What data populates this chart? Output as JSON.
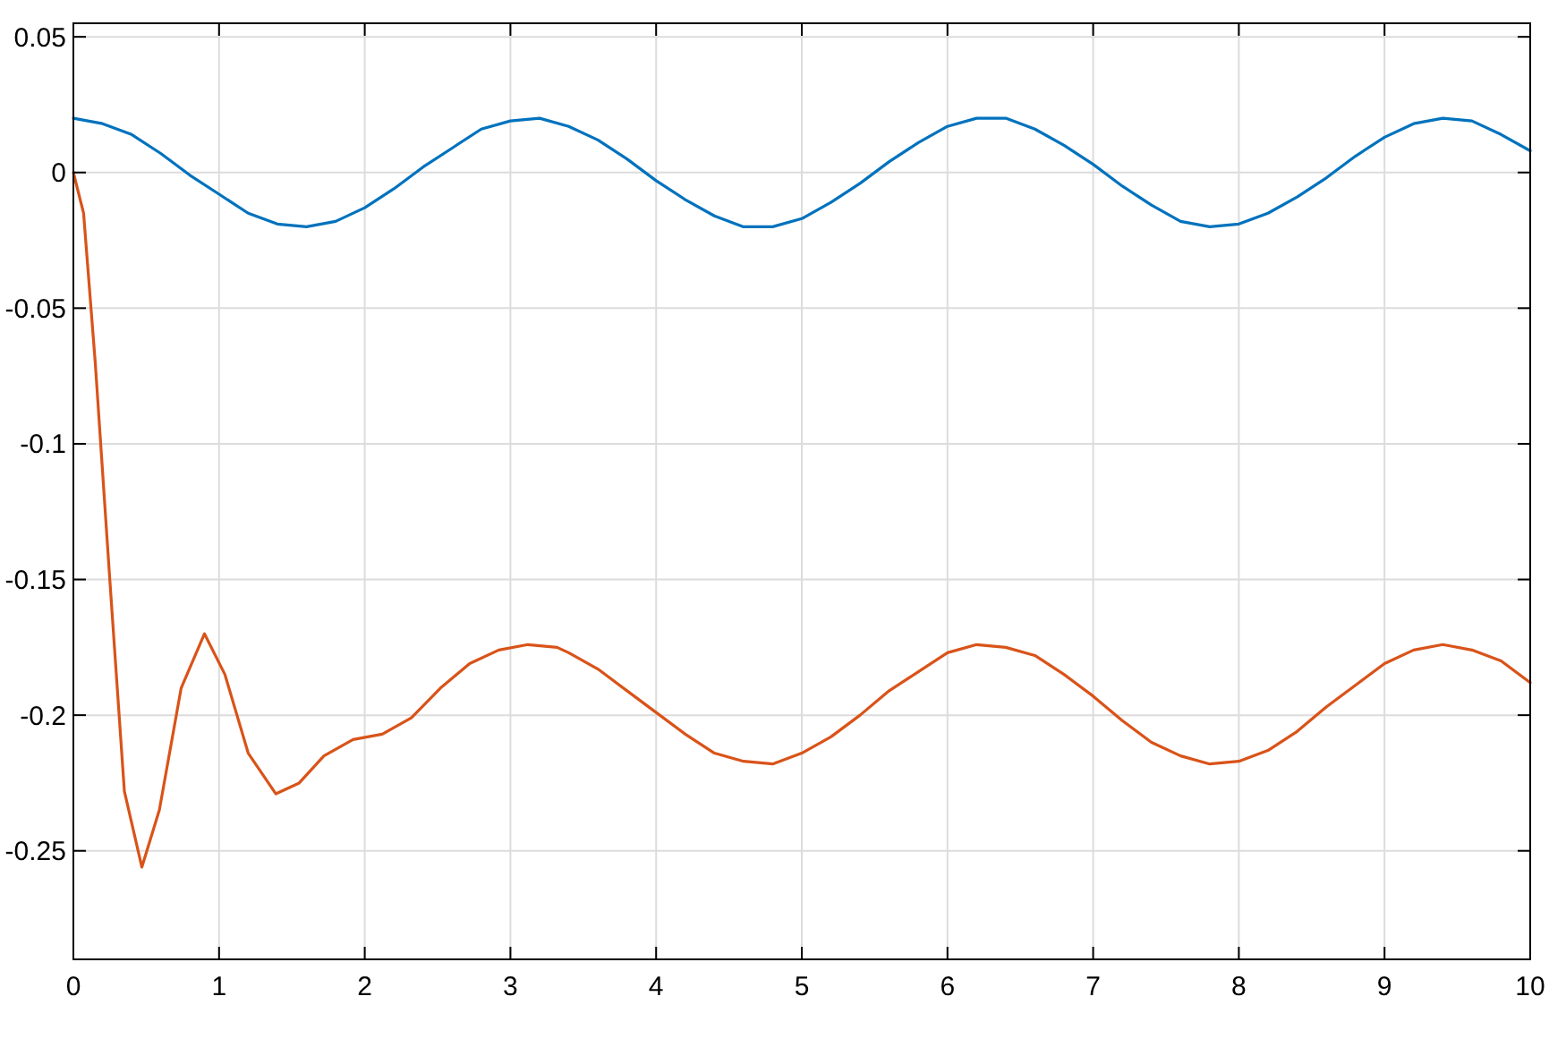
{
  "chart_data": {
    "type": "line",
    "xlim": [
      0,
      10
    ],
    "ylim": [
      -0.29,
      0.055
    ],
    "xticks": [
      0,
      1,
      2,
      3,
      4,
      5,
      6,
      7,
      8,
      9,
      10
    ],
    "yticks": [
      -0.25,
      -0.2,
      -0.15,
      -0.1,
      -0.05,
      0,
      0.05
    ],
    "grid": true,
    "series": [
      {
        "color": "#0072bd",
        "x": [
          0,
          0.2,
          0.4,
          0.6,
          0.8,
          1,
          1.2,
          1.4,
          1.6,
          1.8,
          2,
          2.2,
          2.4,
          2.6,
          2.8,
          3,
          3.2,
          3.4,
          3.6,
          3.8,
          4,
          4.2,
          4.4,
          4.6,
          4.8,
          5,
          5.2,
          5.4,
          5.6,
          5.8,
          6,
          6.2,
          6.4,
          6.6,
          6.8,
          7,
          7.2,
          7.4,
          7.6,
          7.8,
          8,
          8.2,
          8.4,
          8.6,
          8.8,
          9,
          9.2,
          9.4,
          9.6,
          9.8,
          10
        ],
        "values": [
          0.02,
          0.018,
          0.014,
          0.007,
          -0.001,
          -0.008,
          -0.015,
          -0.019,
          -0.02,
          -0.018,
          -0.013,
          -0.006,
          0.002,
          0.009,
          0.016,
          0.019,
          0.02,
          0.017,
          0.012,
          0.005,
          -0.003,
          -0.01,
          -0.016,
          -0.02,
          -0.02,
          -0.017,
          -0.011,
          -0.004,
          0.004,
          0.011,
          0.017,
          0.02,
          0.02,
          0.016,
          0.01,
          0.003,
          -0.005,
          -0.012,
          -0.018,
          -0.02,
          -0.019,
          -0.015,
          -0.009,
          -0.002,
          0.006,
          0.013,
          0.018,
          0.02,
          0.019,
          0.014,
          0.008
        ]
      },
      {
        "color": "#d95319",
        "x": [
          0,
          0.07,
          0.15,
          0.25,
          0.35,
          0.47,
          0.59,
          0.74,
          0.9,
          1.04,
          1.2,
          1.39,
          1.55,
          1.72,
          1.92,
          2.12,
          2.32,
          2.52,
          2.72,
          2.92,
          3.12,
          3.32,
          3.4,
          3.6,
          3.8,
          4,
          4.2,
          4.4,
          4.6,
          4.8,
          5,
          5.2,
          5.4,
          5.6,
          5.8,
          6,
          6.2,
          6.4,
          6.6,
          6.8,
          7,
          7.2,
          7.4,
          7.6,
          7.8,
          8,
          8.2,
          8.4,
          8.6,
          8.8,
          9,
          9.2,
          9.4,
          9.6,
          9.8,
          10
        ],
        "values": [
          0,
          -0.015,
          -0.07,
          -0.15,
          -0.228,
          -0.256,
          -0.235,
          -0.19,
          -0.17,
          -0.185,
          -0.214,
          -0.229,
          -0.225,
          -0.215,
          -0.209,
          -0.207,
          -0.201,
          -0.19,
          -0.181,
          -0.176,
          -0.174,
          -0.175,
          -0.177,
          -0.183,
          -0.191,
          -0.199,
          -0.207,
          -0.214,
          -0.217,
          -0.218,
          -0.214,
          -0.208,
          -0.2,
          -0.191,
          -0.184,
          -0.177,
          -0.174,
          -0.175,
          -0.178,
          -0.185,
          -0.193,
          -0.202,
          -0.21,
          -0.215,
          -0.218,
          -0.217,
          -0.213,
          -0.206,
          -0.197,
          -0.189,
          -0.181,
          -0.176,
          -0.174,
          -0.176,
          -0.18,
          -0.188
        ]
      }
    ]
  }
}
